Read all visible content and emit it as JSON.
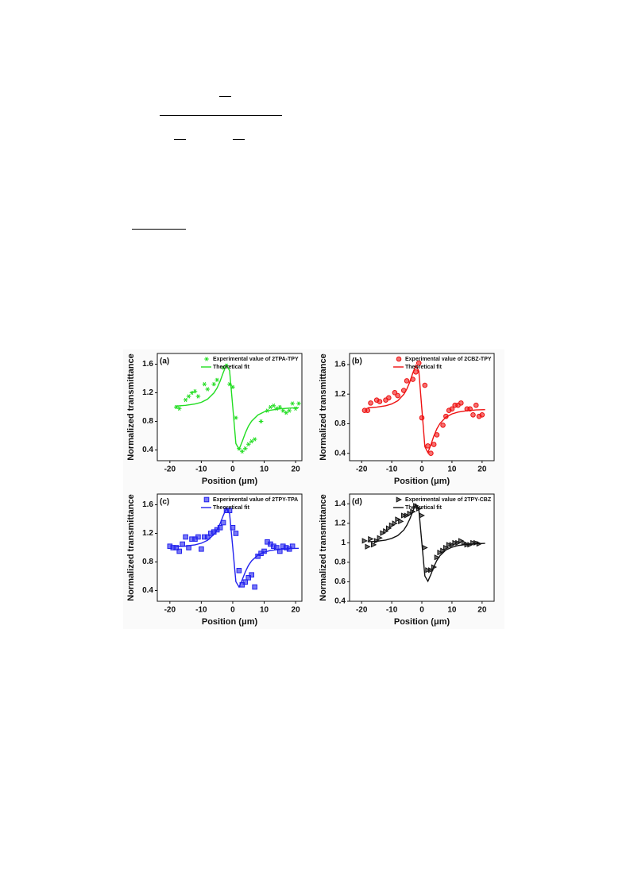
{
  "chart_data": [
    {
      "type": "scatter",
      "annotation": "(a)",
      "xlabel": "Position (μm)",
      "ylabel": "Normalized transmittance",
      "xlim": [
        -24,
        22
      ],
      "ylim": [
        0.25,
        1.75
      ],
      "xticks": [
        -20,
        -10,
        0,
        10,
        20
      ],
      "yticks": [
        0.4,
        0.8,
        1.2,
        1.6
      ],
      "marker": "star",
      "series": [
        {
          "name": "Experimental value of 2TPA-TPY",
          "color": "#22dd22",
          "x": [
            -18,
            -17,
            -15,
            -14,
            -13,
            -12,
            -11,
            -9,
            -8,
            -6,
            -5,
            -3,
            -2,
            -1,
            0,
            1,
            2,
            3,
            4,
            5,
            6,
            7,
            9,
            11,
            12,
            13,
            14,
            15,
            16,
            17,
            18,
            19,
            20,
            21
          ],
          "values": [
            1.0,
            0.98,
            1.1,
            1.15,
            1.2,
            1.22,
            1.15,
            1.32,
            1.25,
            1.32,
            1.38,
            1.55,
            1.58,
            1.32,
            1.28,
            0.85,
            0.42,
            0.38,
            0.42,
            0.48,
            0.52,
            0.55,
            0.8,
            0.95,
            1.0,
            1.02,
            0.98,
            1.0,
            0.95,
            0.92,
            0.95,
            1.05,
            0.98,
            1.05
          ]
        },
        {
          "name": "Theoretical fit",
          "color": "#22dd22",
          "x": [
            -18,
            -15,
            -12,
            -10,
            -8,
            -6,
            -5,
            -4,
            -3,
            -2,
            -1,
            0,
            1,
            2,
            3,
            4,
            5,
            6,
            8,
            10,
            12,
            15,
            18,
            21
          ],
          "values": [
            1.014,
            1.024,
            1.043,
            1.067,
            1.111,
            1.197,
            1.267,
            1.363,
            1.484,
            1.59,
            1.51,
            1.0,
            0.49,
            0.41,
            0.516,
            0.637,
            0.733,
            0.803,
            0.889,
            0.933,
            0.957,
            0.976,
            0.986,
            0.991
          ]
        }
      ]
    },
    {
      "type": "scatter",
      "annotation": "(b)",
      "xlabel": "Position (μm)",
      "ylabel": "Normalized transmittance",
      "xlim": [
        -24,
        24
      ],
      "ylim": [
        0.3,
        1.75
      ],
      "xticks": [
        -20,
        -10,
        0,
        10,
        20
      ],
      "yticks": [
        0.4,
        0.8,
        1.2,
        1.6
      ],
      "marker": "circle",
      "series": [
        {
          "name": "Experimental value of 2CBZ-TPY",
          "color": "#ee1111",
          "x": [
            -19,
            -18,
            -17,
            -15,
            -14,
            -12,
            -11,
            -9,
            -8,
            -6,
            -5,
            -3,
            -2,
            -1,
            0,
            1,
            2,
            3,
            4,
            5,
            7,
            8,
            9,
            10,
            11,
            12,
            13,
            15,
            16,
            17,
            18,
            19,
            20
          ],
          "values": [
            0.98,
            0.98,
            1.08,
            1.12,
            1.1,
            1.12,
            1.15,
            1.22,
            1.18,
            1.25,
            1.38,
            1.4,
            1.5,
            1.62,
            0.88,
            1.32,
            0.5,
            0.4,
            0.52,
            0.65,
            0.78,
            0.9,
            0.98,
            1.0,
            1.05,
            1.05,
            1.08,
            1.0,
            1.0,
            0.92,
            1.05,
            0.9,
            0.92
          ]
        },
        {
          "name": "Theoretical fit",
          "color": "#ee1111",
          "x": [
            -18,
            -15,
            -12,
            -10,
            -8,
            -6,
            -5,
            -4,
            -3,
            -2,
            -1,
            0,
            1,
            2,
            3,
            4,
            5,
            6,
            8,
            10,
            12,
            15,
            18,
            21
          ],
          "values": [
            1.014,
            1.024,
            1.043,
            1.067,
            1.111,
            1.197,
            1.267,
            1.363,
            1.484,
            1.59,
            1.51,
            1.0,
            0.49,
            0.41,
            0.516,
            0.637,
            0.733,
            0.803,
            0.889,
            0.933,
            0.957,
            0.976,
            0.986,
            0.991
          ]
        }
      ]
    },
    {
      "type": "scatter",
      "annotation": "(c)",
      "xlabel": "Position (μm)",
      "ylabel": "Normalized transmittance",
      "xlim": [
        -24,
        22
      ],
      "ylim": [
        0.25,
        1.75
      ],
      "xticks": [
        -20,
        -10,
        0,
        10,
        20
      ],
      "yticks": [
        0.4,
        0.8,
        1.2,
        1.6
      ],
      "marker": "square",
      "series": [
        {
          "name": "Experimental value of 2TPY-TPA",
          "color": "#2222ee",
          "x": [
            -20,
            -19,
            -18,
            -17,
            -16,
            -15,
            -14,
            -13,
            -12,
            -11,
            -10,
            -9,
            -8,
            -7,
            -6,
            -5,
            -4,
            -3,
            -2,
            -1,
            0,
            1,
            2,
            3,
            4,
            5,
            6,
            7,
            8,
            9,
            10,
            11,
            12,
            13,
            14,
            15,
            16,
            17,
            18,
            19
          ],
          "values": [
            1.02,
            1.0,
            1.0,
            0.95,
            1.05,
            1.15,
            1.0,
            1.12,
            1.12,
            1.15,
            0.98,
            1.15,
            1.15,
            1.2,
            1.22,
            1.25,
            1.28,
            1.35,
            1.52,
            1.52,
            1.28,
            1.2,
            0.68,
            0.48,
            0.52,
            0.58,
            0.62,
            0.45,
            0.88,
            0.92,
            0.95,
            1.08,
            1.05,
            1.02,
            1.0,
            0.95,
            1.02,
            1.0,
            0.98,
            1.02
          ]
        },
        {
          "name": "Theoretical fit",
          "color": "#2222ee",
          "x": [
            -18,
            -15,
            -12,
            -10,
            -8,
            -6,
            -5,
            -4,
            -3,
            -2,
            -1,
            0,
            1,
            2,
            3,
            4,
            5,
            6,
            8,
            10,
            12,
            15,
            18,
            21
          ],
          "values": [
            1.013,
            1.022,
            1.04,
            1.062,
            1.103,
            1.184,
            1.249,
            1.339,
            1.451,
            1.55,
            1.475,
            1.0,
            0.525,
            0.45,
            0.549,
            0.661,
            0.751,
            0.816,
            0.897,
            0.938,
            0.96,
            0.978,
            0.987,
            0.991
          ]
        }
      ]
    },
    {
      "type": "scatter",
      "annotation": "(d)",
      "xlabel": "Position (μm)",
      "ylabel": "Normalized transmittance",
      "xlim": [
        -24,
        24
      ],
      "ylim": [
        0.4,
        1.5
      ],
      "xticks": [
        -20,
        -10,
        0,
        10,
        20
      ],
      "yticks": [
        0.4,
        0.6,
        0.8,
        1.0,
        1.2,
        1.4
      ],
      "marker": "triangle",
      "series": [
        {
          "name": "Experimental value of 2TPY-CBZ",
          "color": "#111111",
          "x": [
            -19,
            -18,
            -17,
            -16,
            -15,
            -14,
            -13,
            -12,
            -11,
            -10,
            -9,
            -8,
            -7,
            -6,
            -5,
            -4,
            -3,
            -2,
            -1,
            0,
            1,
            2,
            3,
            4,
            5,
            6,
            7,
            8,
            9,
            10,
            11,
            12,
            13,
            14,
            15,
            16,
            17,
            18,
            19
          ],
          "values": [
            1.02,
            0.96,
            1.04,
            0.98,
            1.02,
            1.05,
            1.1,
            1.12,
            1.15,
            1.18,
            1.2,
            1.24,
            1.22,
            1.28,
            1.28,
            1.3,
            1.32,
            1.38,
            1.35,
            1.28,
            0.95,
            0.72,
            0.72,
            0.75,
            0.85,
            0.9,
            0.92,
            0.95,
            0.98,
            0.98,
            1.0,
            1.0,
            1.02,
            1.0,
            0.98,
            0.98,
            1.0,
            1.0,
            0.99
          ]
        },
        {
          "name": "Theoretical fit",
          "color": "#111111",
          "x": [
            -18,
            -15,
            -12,
            -10,
            -8,
            -6,
            -5,
            -4,
            -3,
            -2,
            -1,
            0,
            1,
            2,
            3,
            4,
            5,
            6,
            8,
            10,
            12,
            15,
            18,
            21
          ],
          "values": [
            1.01,
            1.016,
            1.028,
            1.045,
            1.074,
            1.132,
            1.179,
            1.243,
            1.324,
            1.395,
            1.341,
            1.0,
            0.659,
            0.605,
            0.676,
            0.757,
            0.821,
            0.868,
            0.926,
            0.955,
            0.972,
            0.984,
            0.99,
            0.994
          ]
        }
      ]
    }
  ]
}
